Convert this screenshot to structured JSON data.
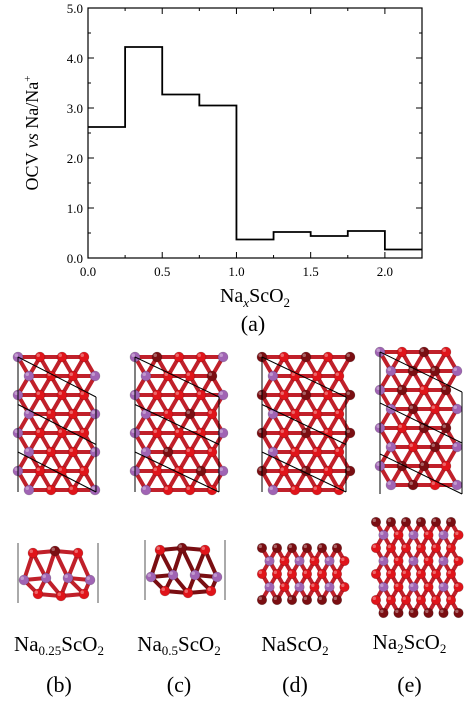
{
  "chart_data": {
    "type": "line",
    "step": true,
    "x_label": {
      "base": "Na",
      "italic_sub": "x",
      "rest": "ScO",
      "sub2": "2"
    },
    "y_label": {
      "pre": "OCV ",
      "italic": "vs",
      "post": " Na/Na",
      "sup": "+"
    },
    "xlim": [
      0.0,
      2.25
    ],
    "ylim": [
      0.0,
      5.0
    ],
    "x_ticks": [
      "0.0",
      "0.5",
      "1.0",
      "1.5",
      "2.0"
    ],
    "y_ticks": [
      "0.0",
      "1.0",
      "2.0",
      "3.0",
      "4.0",
      "5.0"
    ],
    "x_tick_values": [
      0.0,
      0.5,
      1.0,
      1.5,
      2.0
    ],
    "y_tick_values": [
      0.0,
      1.0,
      2.0,
      3.0,
      4.0,
      5.0
    ],
    "steps": [
      {
        "x0": 0.0,
        "x1": 0.25,
        "y": 2.62
      },
      {
        "x0": 0.25,
        "x1": 0.5,
        "y": 4.22
      },
      {
        "x0": 0.5,
        "x1": 0.75,
        "y": 3.27
      },
      {
        "x0": 0.75,
        "x1": 1.0,
        "y": 3.05
      },
      {
        "x0": 1.0,
        "x1": 1.25,
        "y": 0.37
      },
      {
        "x0": 1.25,
        "x1": 1.5,
        "y": 0.52
      },
      {
        "x0": 1.5,
        "x1": 1.75,
        "y": 0.44
      },
      {
        "x0": 1.75,
        "x1": 2.0,
        "y": 0.54
      },
      {
        "x0": 2.0,
        "x1": 2.25,
        "y": 0.17
      }
    ],
    "line_color": "#000000"
  },
  "panels": {
    "a_label": "(a)",
    "structures": [
      {
        "id": "b",
        "label": "(b)",
        "formula": {
          "base": "Na",
          "sub": "0.25",
          "rest": "ScO",
          "sub2": "2"
        }
      },
      {
        "id": "c",
        "label": "(c)",
        "formula": {
          "base": "Na",
          "sub": "0.5",
          "rest": "ScO",
          "sub2": "2"
        }
      },
      {
        "id": "d",
        "label": "(d)",
        "formula": {
          "base": "NaScO",
          "sub": "2",
          "rest": "",
          "sub2": ""
        }
      },
      {
        "id": "e",
        "label": "(e)",
        "formula": {
          "base": "Na",
          "sub": "2",
          "rest": "ScO",
          "sub2": "2"
        }
      }
    ]
  },
  "colors": {
    "oxygen": "#e0141a",
    "sodium": "#a064b4",
    "scandium": "#7a0e12",
    "bond": "#c0202a"
  }
}
